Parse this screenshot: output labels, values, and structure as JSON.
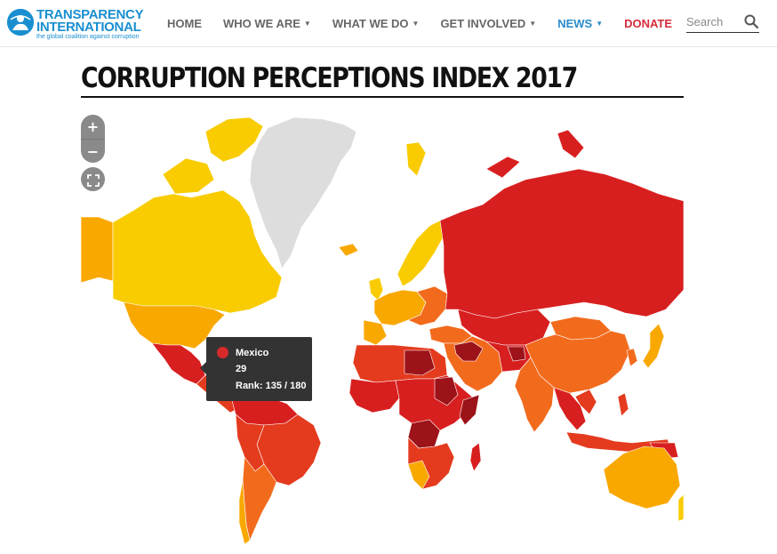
{
  "header": {
    "logo": {
      "name_line1": "TRANSPARENCY",
      "name_line2": "INTERNATIONAL",
      "tagline": "the global coalition against corruption"
    },
    "nav": [
      {
        "label": "HOME",
        "has_caret": false,
        "color": "#666666"
      },
      {
        "label": "WHO WE ARE",
        "has_caret": true,
        "color": "#666666"
      },
      {
        "label": "WHAT WE DO",
        "has_caret": true,
        "color": "#666666"
      },
      {
        "label": "GET INVOLVED",
        "has_caret": true,
        "color": "#666666"
      },
      {
        "label": "NEWS",
        "has_caret": true,
        "color": "#2a8ccb"
      },
      {
        "label": "DONATE",
        "has_caret": false,
        "color": "#d52b3a"
      }
    ],
    "search": {
      "placeholder": "Search",
      "icon": "search-icon"
    }
  },
  "page": {
    "title": "CORRUPTION PERCEPTIONS INDEX 2017"
  },
  "map": {
    "controls": {
      "zoom_in": "+",
      "zoom_out": "−",
      "fullscreen_icon": "fullscreen-icon"
    },
    "colors": {
      "very_clean": "#f8cc00",
      "clean": "#f9a800",
      "moderate": "#f26b1d",
      "corrupt": "#e43b1e",
      "very_corrupt": "#d81f1f",
      "highly_corrupt": "#9c1319",
      "no_data": "#dddddd"
    },
    "tooltip": {
      "country": "Mexico",
      "score": "29",
      "rank": "Rank: 135 / 180",
      "color": "#d62a2a"
    }
  }
}
